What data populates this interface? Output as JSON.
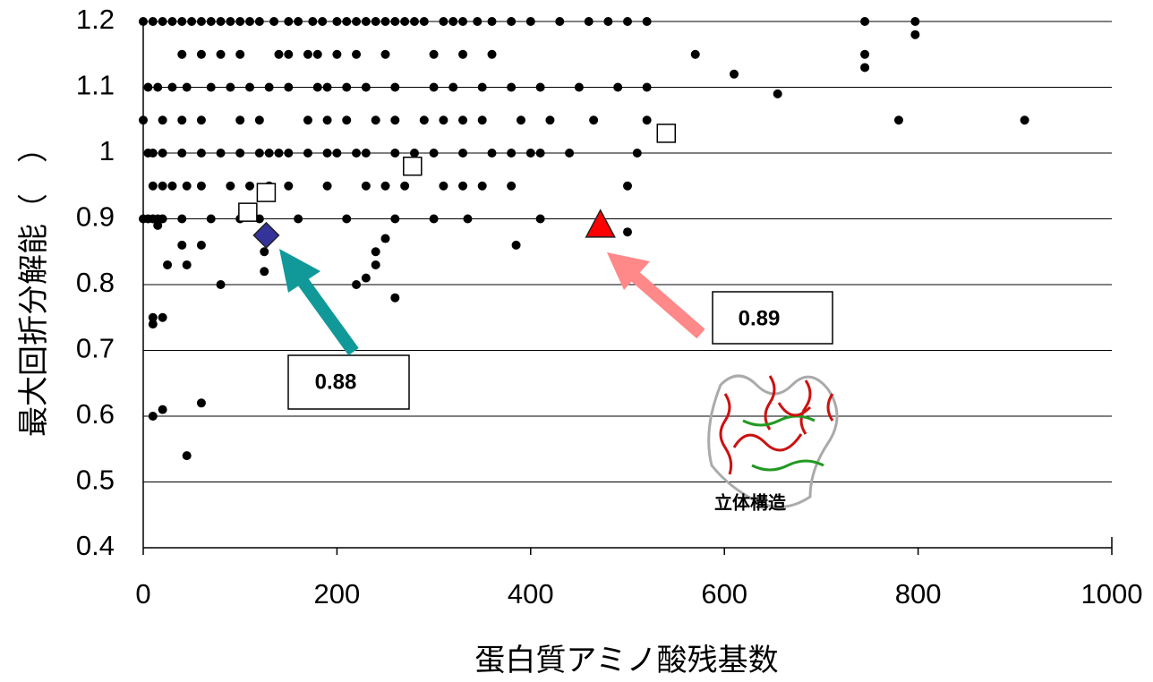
{
  "chart_data": {
    "type": "scatter",
    "xlabel": "蛋白質アミノ酸残基数",
    "ylabel": "最大回折分解能（　）",
    "xlim": [
      0,
      1000
    ],
    "xticks": [
      0,
      200,
      400,
      600,
      800,
      1000
    ],
    "ylim": [
      0.4,
      1.2
    ],
    "yticks": [
      0.4,
      0.5,
      0.6,
      0.7,
      0.8,
      0.9,
      1,
      1.1,
      1.2
    ],
    "grid": true,
    "series": [
      {
        "color": "#000000",
        "marker": "circle",
        "x": [
          0,
          10,
          20,
          30,
          40,
          50,
          60,
          70,
          80,
          90,
          100,
          110,
          120,
          135,
          150,
          160,
          175,
          185,
          200,
          210,
          220,
          230,
          240,
          250,
          260,
          270,
          280,
          290,
          310,
          320,
          330,
          345,
          360,
          380,
          400,
          430,
          460,
          480,
          500,
          520,
          745,
          797,
          797,
          745,
          570,
          745,
          610,
          655,
          780,
          910,
          40,
          60,
          80,
          100,
          140,
          150,
          170,
          180,
          200,
          220,
          250,
          300,
          330,
          360,
          5,
          15,
          30,
          45,
          70,
          90,
          110,
          130,
          150,
          180,
          190,
          210,
          230,
          260,
          300,
          320,
          350,
          380,
          410,
          450,
          490,
          520,
          0,
          20,
          40,
          60,
          100,
          120,
          170,
          190,
          210,
          240,
          260,
          290,
          310,
          330,
          350,
          390,
          420,
          465,
          520,
          5,
          10,
          20,
          40,
          60,
          80,
          100,
          120,
          130,
          140,
          150,
          170,
          190,
          200,
          220,
          230,
          260,
          280,
          300,
          330,
          360,
          380,
          400,
          410,
          440,
          510,
          10,
          20,
          30,
          45,
          60,
          90,
          110,
          130,
          150,
          190,
          230,
          250,
          270,
          310,
          330,
          350,
          380,
          500,
          0,
          5,
          10,
          15,
          20,
          40,
          70,
          100,
          120,
          160,
          210,
          260,
          300,
          335,
          410,
          25,
          45,
          80,
          125,
          125,
          220,
          230,
          260,
          240,
          385,
          500,
          40,
          60,
          10,
          20,
          10,
          10,
          20,
          60,
          45,
          250,
          15,
          240
        ],
        "values": [
          1.2,
          1.2,
          1.2,
          1.2,
          1.2,
          1.2,
          1.2,
          1.2,
          1.2,
          1.2,
          1.2,
          1.2,
          1.2,
          1.2,
          1.2,
          1.2,
          1.2,
          1.2,
          1.2,
          1.2,
          1.2,
          1.2,
          1.2,
          1.2,
          1.2,
          1.2,
          1.2,
          1.2,
          1.2,
          1.2,
          1.2,
          1.2,
          1.2,
          1.2,
          1.2,
          1.2,
          1.2,
          1.2,
          1.2,
          1.2,
          1.2,
          1.2,
          1.18,
          1.15,
          1.15,
          1.13,
          1.12,
          1.09,
          1.05,
          1.05,
          1.15,
          1.15,
          1.15,
          1.15,
          1.15,
          1.15,
          1.15,
          1.15,
          1.15,
          1.15,
          1.15,
          1.15,
          1.15,
          1.15,
          1.1,
          1.1,
          1.1,
          1.1,
          1.1,
          1.1,
          1.1,
          1.1,
          1.1,
          1.1,
          1.1,
          1.1,
          1.1,
          1.1,
          1.1,
          1.1,
          1.1,
          1.1,
          1.1,
          1.1,
          1.1,
          1.1,
          1.05,
          1.05,
          1.05,
          1.05,
          1.05,
          1.05,
          1.05,
          1.05,
          1.05,
          1.05,
          1.05,
          1.05,
          1.05,
          1.05,
          1.05,
          1.05,
          1.05,
          1.05,
          1.05,
          1,
          1,
          1,
          1,
          1,
          1,
          1,
          1,
          1,
          1,
          1,
          1,
          1,
          1,
          1,
          1,
          1,
          1,
          1,
          1,
          1,
          1,
          1,
          1,
          1,
          1,
          0.95,
          0.95,
          0.95,
          0.95,
          0.95,
          0.95,
          0.95,
          0.95,
          0.95,
          0.95,
          0.95,
          0.95,
          0.95,
          0.95,
          0.95,
          0.95,
          0.95,
          0.95,
          0.9,
          0.9,
          0.9,
          0.9,
          0.9,
          0.9,
          0.9,
          0.9,
          0.9,
          0.9,
          0.9,
          0.9,
          0.9,
          0.9,
          0.9,
          0.83,
          0.83,
          0.8,
          0.85,
          0.82,
          0.8,
          0.81,
          0.78,
          0.85,
          0.86,
          0.88,
          0.86,
          0.86,
          0.75,
          0.75,
          0.74,
          0.6,
          0.61,
          0.62,
          0.54,
          0.87,
          0.89,
          0.83
        ]
      },
      {
        "color": "#ffffff",
        "marker": "square",
        "x": [
          108,
          127,
          278,
          540
        ],
        "values": [
          0.91,
          0.94,
          0.98,
          1.03
        ]
      },
      {
        "color": "#333399",
        "marker": "diamond",
        "x": [
          127
        ],
        "values": [
          0.875
        ]
      },
      {
        "color": "#ff0000",
        "marker": "triangle",
        "x": [
          472
        ],
        "values": [
          0.89
        ]
      }
    ],
    "annotations": [
      "0.88",
      "0.89",
      "立体構造"
    ]
  }
}
